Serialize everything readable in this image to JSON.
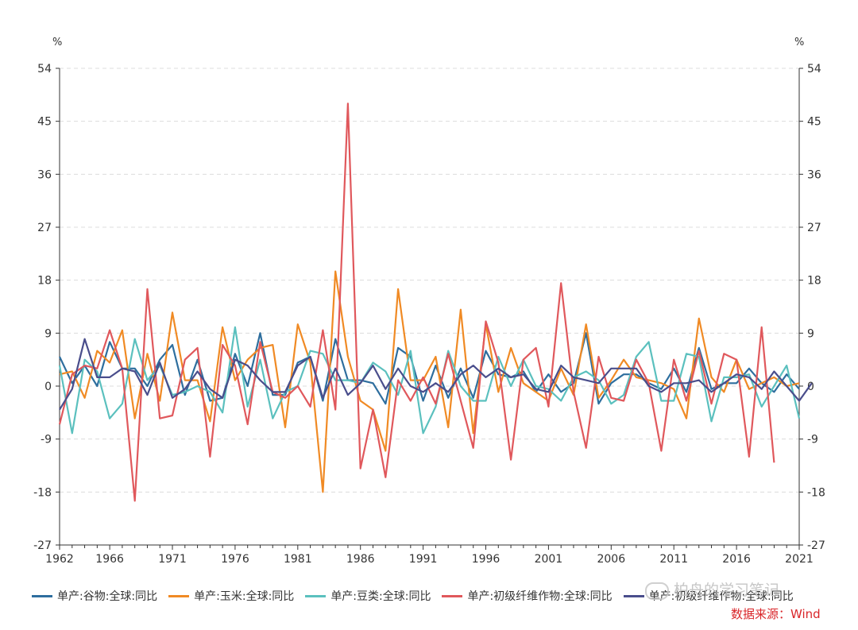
{
  "chart_data": {
    "type": "line",
    "title": "",
    "ylabel_left": "%",
    "ylabel_right": "%",
    "ylim": [
      -27,
      54
    ],
    "yticks": [
      -27,
      -18,
      -9,
      0,
      9,
      18,
      27,
      36,
      45,
      54
    ],
    "xlim": [
      1962,
      2021
    ],
    "xticks": [
      1962,
      1966,
      1971,
      1976,
      1981,
      1986,
      1991,
      1996,
      2001,
      2006,
      2011,
      2016,
      2021
    ],
    "grid": true,
    "legend_position": "bottom",
    "series": [
      {
        "name": "单产:谷物:全球:同比",
        "color": "#2e6e9e",
        "start_year": 1962,
        "values": [
          5.0,
          0.5,
          3.5,
          0.0,
          7.5,
          3.0,
          3.0,
          0.0,
          4.5,
          7.0,
          -1.5,
          4.5,
          -2.5,
          -2.0,
          5.5,
          0.0,
          9.0,
          -1.5,
          -1.5,
          4.0,
          5.0,
          -2.5,
          8.0,
          1.0,
          1.0,
          0.5,
          -3.0,
          6.5,
          5.0,
          -2.5,
          3.5,
          -2.0,
          3.0,
          -2.0,
          6.0,
          2.0,
          1.5,
          2.5,
          -1.0,
          2.0,
          -1.0,
          0.5,
          9.0,
          -3.0,
          0.5,
          2.0,
          2.0,
          0.5,
          -0.5,
          3.0,
          -1.0,
          6.5,
          -0.5,
          0.5,
          0.5,
          3.0,
          0.5,
          -1.0,
          2.0,
          -0.5
        ]
      },
      {
        "name": "单产:玉米:全球:同比",
        "color": "#f08a24",
        "start_year": 1962,
        "values": [
          2.0,
          2.5,
          -2.0,
          6.0,
          4.0,
          9.5,
          -5.5,
          5.5,
          -2.5,
          12.5,
          1.0,
          1.0,
          -6.0,
          10.0,
          1.0,
          4.5,
          6.5,
          7.0,
          -7.0,
          10.5,
          4.0,
          -18.0,
          19.5,
          5.0,
          -2.5,
          -4.0,
          -11.0,
          16.5,
          1.0,
          1.0,
          5.0,
          -7.0,
          13.0,
          -8.0,
          10.5,
          -1.0,
          6.5,
          0.5,
          -1.0,
          -2.5,
          3.0,
          -1.5,
          10.5,
          -2.0,
          1.0,
          4.5,
          1.5,
          1.0,
          0.5,
          -0.5,
          -5.5,
          11.5,
          1.5,
          -1.0,
          4.5,
          -0.5,
          0.5,
          1.5,
          0.0,
          0.5
        ]
      },
      {
        "name": "单产:豆类:全球:同比",
        "color": "#5bc0be",
        "start_year": 1962,
        "values": [
          3.5,
          -8.0,
          4.5,
          2.5,
          -5.5,
          -3.0,
          8.0,
          1.0,
          3.5,
          -1.5,
          -1.0,
          0.0,
          -1.0,
          -4.5,
          10.0,
          -3.5,
          4.5,
          -5.5,
          -1.0,
          0.0,
          6.0,
          5.5,
          1.0,
          1.0,
          0.5,
          4.0,
          2.5,
          -1.5,
          6.0,
          -8.0,
          -3.5,
          6.0,
          0.0,
          -2.5,
          -2.5,
          5.0,
          0.0,
          4.5,
          0.0,
          -0.5,
          -2.5,
          1.5,
          2.5,
          1.0,
          -3.0,
          -1.5,
          5.0,
          7.5,
          -2.5,
          -2.5,
          5.5,
          5.0,
          -6.0,
          1.5,
          1.5,
          2.0,
          -3.5,
          0.0,
          3.5,
          -5.5
        ]
      },
      {
        "name": "单产:初级纤维作物:全球:同比",
        "color": "#e0585c",
        "start_year": 1962,
        "values": [
          -6.5,
          2.0,
          3.5,
          3.0,
          9.5,
          3.0,
          -19.5,
          16.5,
          -5.5,
          -5.0,
          4.5,
          6.5,
          -12.0,
          7.0,
          3.5,
          -6.5,
          7.5,
          -1.0,
          -2.0,
          0.0,
          -3.5,
          9.5,
          -4.0,
          48.0,
          -14.0,
          -4.0,
          -15.5,
          1.0,
          -2.5,
          1.5,
          -3.0,
          5.5,
          -2.5,
          -10.5,
          11.0,
          4.0,
          -12.5,
          4.5,
          6.5,
          -3.5,
          17.5,
          -1.0,
          -10.5,
          5.0,
          -2.0,
          -2.5,
          4.5,
          0.5,
          -11.0,
          4.5,
          -2.5,
          6.0,
          -3.0,
          5.5,
          4.5,
          -12.0,
          10.0,
          -13.0
        ]
      },
      {
        "name": "单产:初级纤维作物:全球:同比",
        "color": "#4a4e8c",
        "start_year": 1962,
        "values": [
          -4.0,
          -0.5,
          8.0,
          1.5,
          1.5,
          3.0,
          2.5,
          -1.5,
          4.0,
          -2.0,
          -0.5,
          2.5,
          -0.5,
          -2.0,
          4.5,
          3.5,
          1.0,
          -1.0,
          -1.0,
          3.5,
          5.0,
          -2.0,
          3.0,
          -1.5,
          0.5,
          3.5,
          -0.5,
          3.0,
          0.0,
          -1.0,
          0.5,
          -1.0,
          2.0,
          3.5,
          1.5,
          3.0,
          1.5,
          2.0,
          -0.5,
          -1.0,
          3.5,
          1.5,
          1.0,
          0.5,
          3.0,
          3.0,
          3.0,
          0.0,
          -1.0,
          0.5,
          0.5,
          1.0,
          -1.0,
          0.5,
          2.0,
          1.5,
          -0.5,
          2.5,
          0.0,
          -2.5,
          0.5
        ]
      }
    ]
  },
  "legend": {
    "items": [
      {
        "label": "单产:谷物:全球:同比",
        "color": "#2e6e9e"
      },
      {
        "label": "单产:玉米:全球:同比",
        "color": "#f08a24"
      },
      {
        "label": "单产:豆类:全球:同比",
        "color": "#5bc0be"
      },
      {
        "label": "单产:初级纤维作物:全球:同比",
        "color": "#e0585c"
      },
      {
        "label": "单产:初级纤维作物:全球:同比",
        "color": "#4a4e8c"
      }
    ]
  },
  "watermark": {
    "text": "柏舟的学习笔记"
  },
  "source": {
    "text": "数据来源：Wind"
  }
}
